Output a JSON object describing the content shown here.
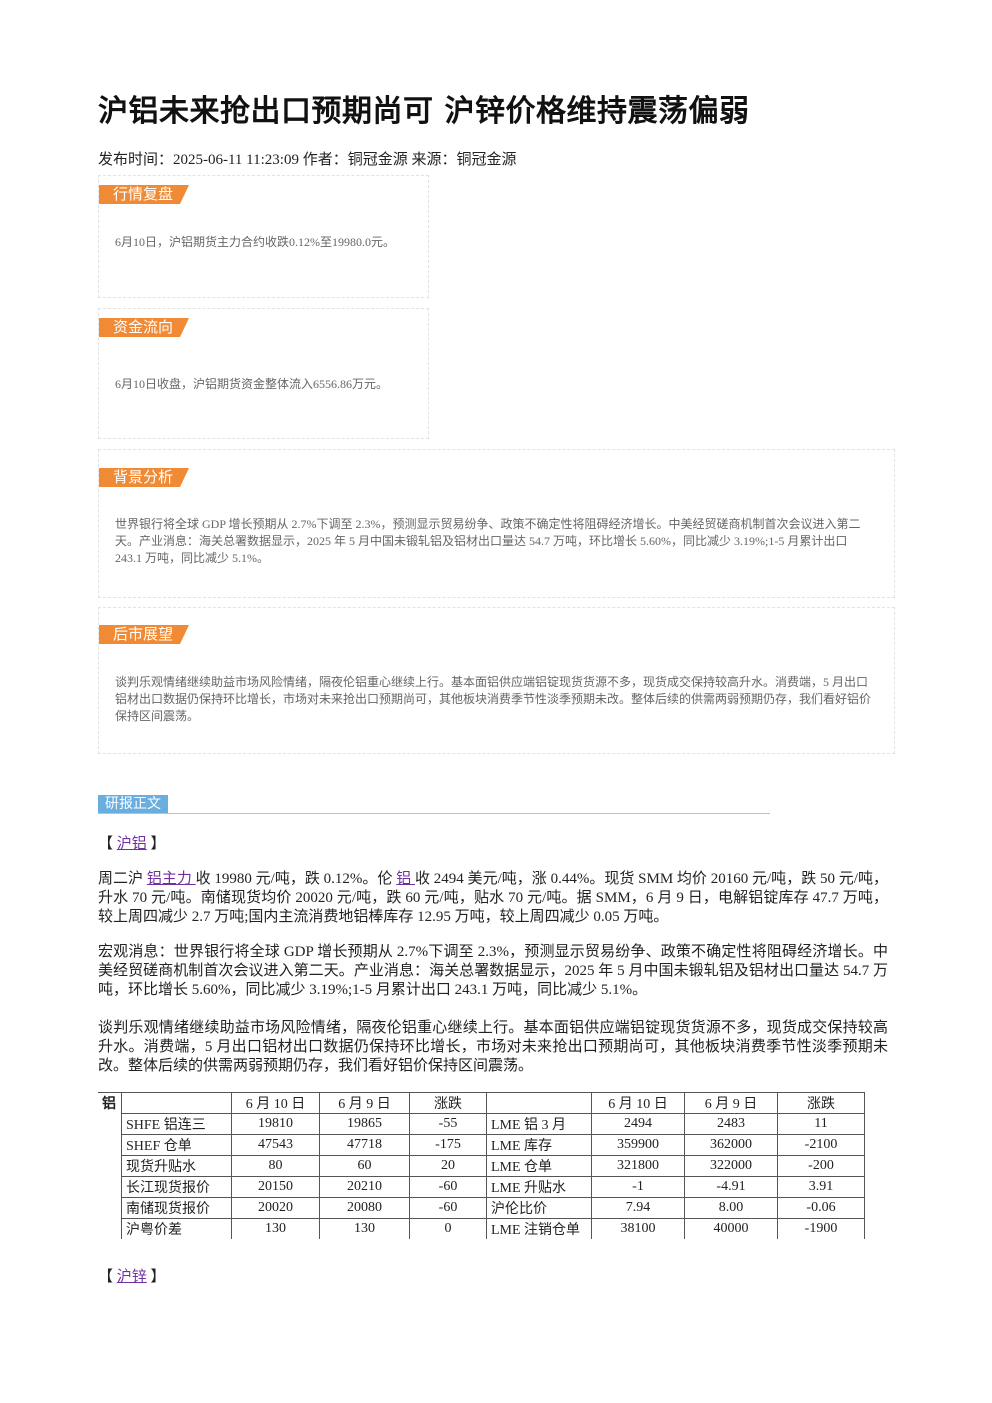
{
  "title": "沪铝未来抢出口预期尚可 沪锌价格维持震荡偏弱",
  "meta": "发布时间：2025-06-11 11:23:09 作者：铜冠金源 来源：铜冠金源",
  "sections": [
    {
      "heading": "行情复盘",
      "text": "6月10日，沪铝期货主力合约收跌0.12%至19980.0元。"
    },
    {
      "heading": "资金流向",
      "text": "6月10日收盘，沪铝期货资金整体流入6556.86万元。"
    },
    {
      "heading": "背景分析",
      "text": "世界银行将全球 GDP 增长预期从 2.7%下调至 2.3%，预测显示贸易纷争、政策不确定性将阻碍经济增长。中美经贸磋商机制首次会议进入第二天。产业消息：海关总署数据显示，2025 年 5 月中国未锻轧铝及铝材出口量达 54.7 万吨，环比增长 5.60%，同比减少 3.19%;1-5 月累计出口 243.1 万吨，同比减少 5.1%。"
    },
    {
      "heading": "后市展望",
      "text": "谈判乐观情绪继续助益市场风险情绪，隔夜伦铝重心继续上行。基本面铝供应端铝锭现货货源不多，现货成交保持较高升水。消费端，5 月出口铝材出口数据仍保持环比增长，市场对未来抢出口预期尚可，其他板块消费季节性淡季预期未改。整体后续的供需两弱预期仍存，我们看好铝价保持区间震荡。"
    }
  ],
  "report_label": "研报正文",
  "label_al": {
    "open": "【",
    "link": "沪铝",
    "close": "】"
  },
  "paragraph1": [
    "周二沪 ",
    "铝主力 ",
    "收 19980 元/吨，跌 0.12%。伦 ",
    "铝 ",
    "收 2494 美元/吨，涨 0.44%。现货 SMM 均价 20160 元/吨，跌 50 元/吨，升水 70 元/吨。南储现货均价 20020 元/吨，跌 60 元/吨，贴水 70 元/吨。据 SMM，6 月 9 日，电解铝锭库存 47.7 万吨，较上周四减少 2.7 万吨;国内主流消费地铝棒库存 12.95 万吨，较上周四减少 0.05 万吨。"
  ],
  "paragraph2": "宏观消息：世界银行将全球 GDP 增长预期从 2.7%下调至 2.3%，预测显示贸易纷争、政策不确定性将阻碍经济增长。中美经贸磋商机制首次会议进入第二天。产业消息：海关总署数据显示，2025 年 5 月中国未锻轧铝及铝材出口量达 54.7 万吨，环比增长 5.60%，同比减少 3.19%;1-5 月累计出口 243.1 万吨，同比减少 5.1%。",
  "paragraph3": "谈判乐观情绪继续助益市场风险情绪，隔夜伦铝重心继续上行。基本面铝供应端铝锭现货货源不多，现货成交保持较高升水。消费端，5 月出口铝材出口数据仍保持环比增长，市场对未来抢出口预期尚可，其他板块消费季节性淡季预期未改。整体后续的供需两弱预期仍存，我们看好铝价保持区间震荡。",
  "table": {
    "corner": "铝",
    "header": [
      null,
      "6 月 10 日",
      "6 月 9 日",
      "涨跌",
      null,
      "6 月 10 日",
      "6 月 9 日",
      "涨跌"
    ],
    "rows": [
      [
        "SHFE 铝连三",
        "19810",
        "19865",
        "-55",
        "LME 铝 3 月",
        "2494",
        "2483",
        "11"
      ],
      [
        "SHEF 仓单",
        "47543",
        "47718",
        "-175",
        "LME 库存",
        "359900",
        "362000",
        "-2100"
      ],
      [
        "现货升贴水",
        "80",
        "60",
        "20",
        "LME 仓单",
        "321800",
        "322000",
        "-200"
      ],
      [
        "长江现货报价",
        "20150",
        "20210",
        "-60",
        "LME 升贴水",
        "-1",
        "-4.91",
        "3.91"
      ],
      [
        "南储现货报价",
        "20020",
        "20080",
        "-60",
        "沪伦比价",
        "7.94",
        "8.00",
        "-0.06"
      ],
      [
        "沪粤价差",
        "130",
        "130",
        "0",
        "LME 注销仓单",
        "38100",
        "40000",
        "-1900"
      ]
    ]
  },
  "label_zn": {
    "open": "【",
    "link": "沪锌",
    "close": "】"
  }
}
